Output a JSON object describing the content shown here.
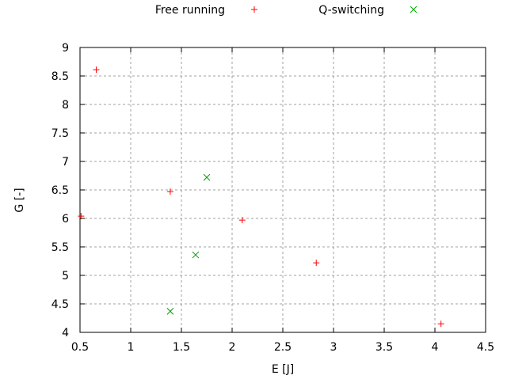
{
  "chart_data": {
    "type": "scatter",
    "title": "",
    "xlabel": "E [J]",
    "ylabel": "G [-]",
    "xlim": [
      0.5,
      4.5
    ],
    "ylim": [
      4,
      9
    ],
    "xticks": [
      "0.5",
      "1",
      "1.5",
      "2",
      "2.5",
      "3",
      "3.5",
      "4",
      "4.5"
    ],
    "yticks": [
      "4",
      "4.5",
      "5",
      "5.5",
      "6",
      "6.5",
      "7",
      "7.5",
      "8",
      "8.5",
      "9"
    ],
    "grid": true,
    "legend_position": "top-outside",
    "series": [
      {
        "name": "Free running",
        "marker": "plus",
        "color": "#ff0000",
        "points": [
          [
            0.66,
            8.61
          ],
          [
            0.51,
            6.04
          ],
          [
            1.39,
            6.47
          ],
          [
            2.1,
            5.97
          ],
          [
            2.83,
            5.22
          ],
          [
            4.06,
            4.15
          ]
        ]
      },
      {
        "name": "Q-switching",
        "marker": "cross",
        "color": "#00a000",
        "points": [
          [
            1.75,
            6.72
          ],
          [
            1.64,
            5.36
          ],
          [
            1.39,
            4.37
          ]
        ]
      }
    ]
  }
}
